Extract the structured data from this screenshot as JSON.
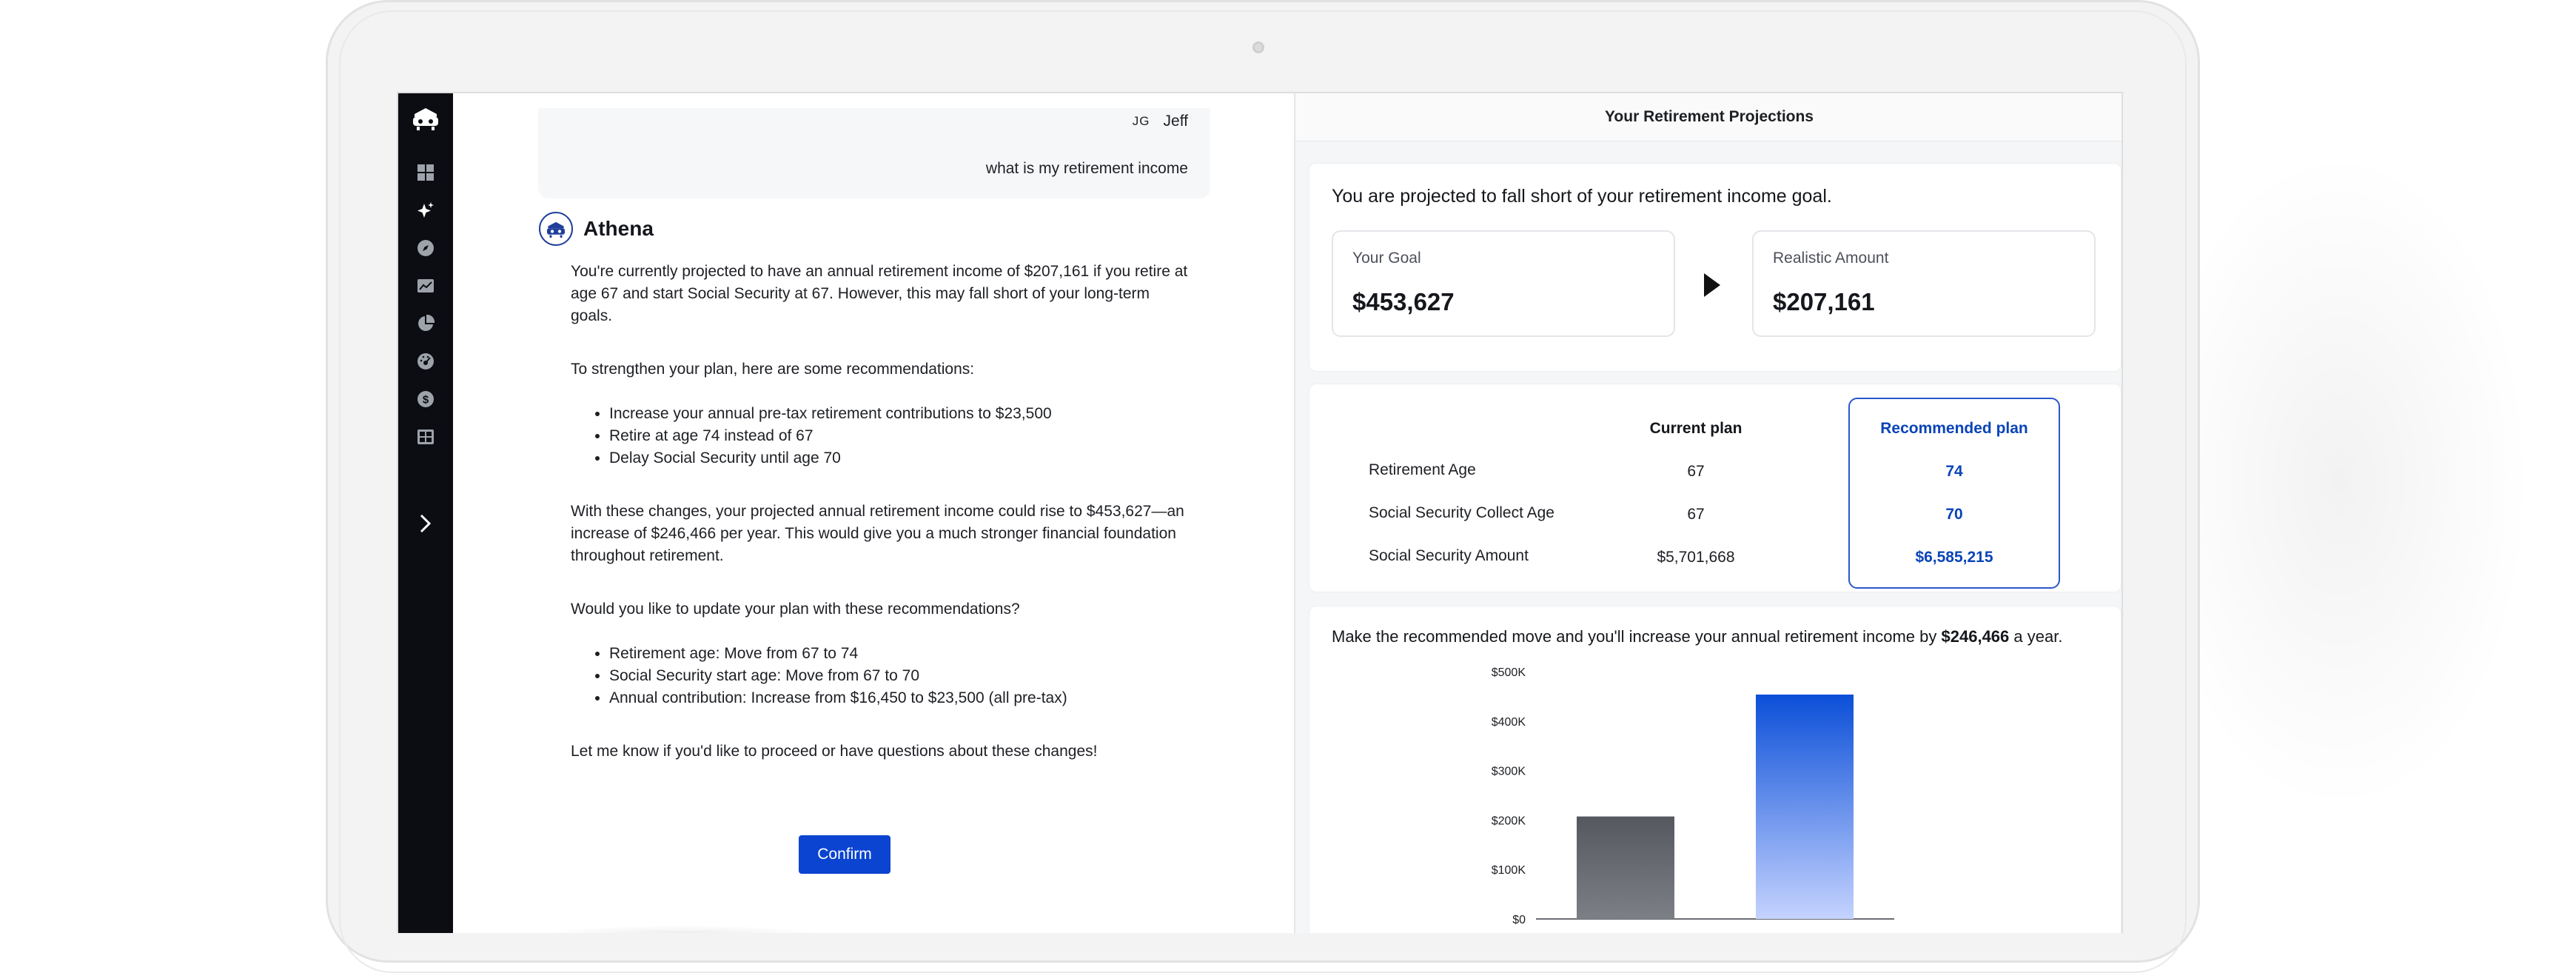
{
  "chat": {
    "user": {
      "initials": "JG",
      "name": "Jeff",
      "message": "what is my retirement income"
    },
    "assistant_name": "Athena",
    "paragraph1": "You're currently projected to have an annual retirement income of $207,161 if you retire at age 67 and start Social Security at 67. However, this may fall short of your long-term goals.",
    "paragraph2": "To strengthen your plan, here are some recommendations:",
    "recommendations": [
      "Increase your annual pre-tax retirement contributions to $23,500",
      "Retire at age 74 instead of 67",
      "Delay Social Security until age 70"
    ],
    "paragraph3": "With these changes, your projected annual retirement income could rise to $453,627—an increase of $246,466 per year. This would give you a much stronger financial foundation throughout retirement.",
    "paragraph4": "Would you like to update your plan with these recommendations?",
    "changes": [
      "Retirement age: Move from 67 to 74",
      "Social Security start age: Move from 67 to 70",
      "Annual contribution: Increase from $16,450 to $23,500 (all pre-tax)"
    ],
    "paragraph5": "Let me know if you'd like to proceed or have questions about these changes!",
    "confirm_label": "Confirm"
  },
  "sidebar": {
    "icons": [
      "dashboard-icon",
      "sparkles-icon",
      "compass-icon",
      "trend-chart-icon",
      "pie-chart-icon",
      "gauge-icon",
      "dollar-icon",
      "grid-icon"
    ],
    "expand_icon": "chevron-right-icon"
  },
  "projections": {
    "title": "Your Retirement Projections",
    "shortfall_text": "You are projected to fall short of your retirement income goal.",
    "goal_label": "Your Goal",
    "goal_value": "$453,627",
    "realistic_label": "Realistic Amount",
    "realistic_value": "$207,161",
    "plan_table": {
      "current_header": "Current plan",
      "recommended_header": "Recommended plan",
      "rows": [
        {
          "label": "Retirement Age",
          "current": "67",
          "recommended": "74"
        },
        {
          "label": "Social Security Collect Age",
          "current": "67",
          "recommended": "70"
        },
        {
          "label": "Social Security Amount",
          "current": "$5,701,668",
          "recommended": "$6,585,215"
        }
      ]
    },
    "caption_prefix": "Make the recommended move and you'll increase your annual retirement income by ",
    "caption_amount": "$246,466",
    "caption_suffix": " a year."
  },
  "chart_data": {
    "type": "bar",
    "categories": [
      "",
      ""
    ],
    "values": [
      207161,
      453627
    ],
    "ylim": [
      0,
      500000
    ],
    "yticks": [
      "$0",
      "$100K",
      "$200K",
      "$300K",
      "$400K",
      "$500K"
    ],
    "grid": false,
    "colors": [
      "#5a5d63",
      "#0b4fd8"
    ]
  },
  "colors": {
    "accent": "#0a44d0",
    "sidebar": "#0b0d12"
  }
}
